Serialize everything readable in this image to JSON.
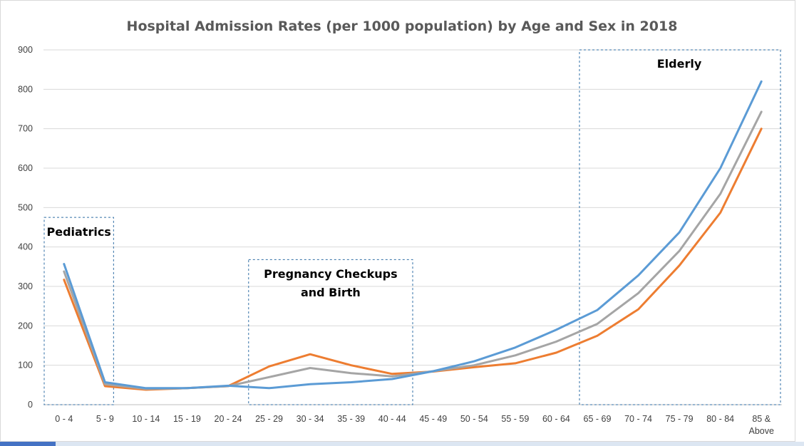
{
  "chart_data": {
    "type": "line",
    "title": "Hospital Admission Rates (per 1000 population) by Age and Sex in 2018",
    "xlabel": "",
    "ylabel": "",
    "ylim": [
      0,
      900
    ],
    "yticks": [
      0,
      100,
      200,
      300,
      400,
      500,
      600,
      700,
      800,
      900
    ],
    "categories": [
      "0 - 4",
      "5 - 9",
      "10 - 14",
      "15 - 19",
      "20 - 24",
      "25 - 29",
      "30 - 34",
      "35 - 39",
      "40 - 44",
      "45 - 49",
      "50 - 54",
      "55 - 59",
      "60 - 64",
      "65 - 69",
      "70 - 74",
      "75 - 79",
      "80 - 84",
      "85 & Above"
    ],
    "grid": "horizontal",
    "legend": "none",
    "series": [
      {
        "color": "#5b9bd5",
        "values": [
          357,
          57,
          42,
          42,
          48,
          42,
          52,
          57,
          65,
          85,
          110,
          145,
          190,
          240,
          328,
          437,
          600,
          820
        ]
      },
      {
        "color": "#a5a5a5",
        "values": [
          338,
          52,
          40,
          42,
          47,
          70,
          93,
          80,
          72,
          85,
          100,
          125,
          160,
          205,
          283,
          390,
          535,
          743
        ]
      },
      {
        "color": "#ed7d31",
        "values": [
          317,
          47,
          38,
          42,
          47,
          97,
          128,
          100,
          78,
          84,
          95,
          105,
          132,
          175,
          242,
          353,
          487,
          700
        ]
      }
    ],
    "annotations": [
      {
        "label": "Pediatrics",
        "from": 0,
        "to": 1,
        "ymax": 475
      },
      {
        "label": "Pregnancy Checkups and Birth",
        "lines": [
          "Pregnancy Checkups",
          "and Birth"
        ],
        "from": 4.5,
        "to": 8.5,
        "ymax": 368
      },
      {
        "label": "Elderly",
        "from": 13,
        "to": 17.5,
        "ymax": 900
      }
    ]
  }
}
